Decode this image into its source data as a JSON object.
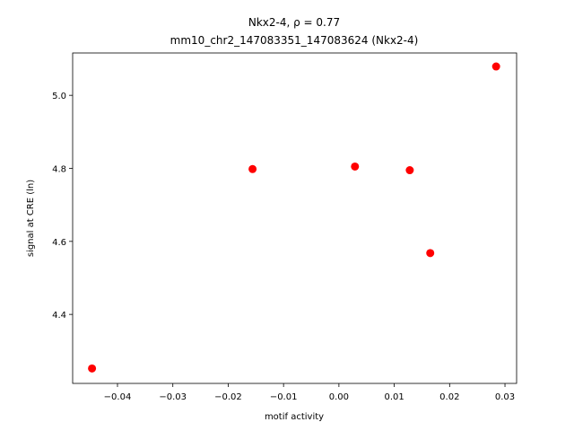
{
  "chart_data": {
    "type": "scatter",
    "title": "Nkx2-4, ρ = 0.77",
    "subtitle": "mm10_chr2_147083351_147083624 (Nkx2-4)",
    "x_label": "motif activity",
    "y_label": "signal at CRE (ln)",
    "color": "#ff0000",
    "x": [
      -0.0446,
      -0.0156,
      0.0029,
      0.0128,
      0.0165,
      0.0284
    ],
    "y": [
      4.252,
      4.798,
      4.805,
      4.795,
      4.568,
      5.079
    ],
    "xlim": [
      -0.0481,
      0.0321
    ],
    "ylim": [
      4.211,
      5.116
    ],
    "xticks": [
      {
        "value": -0.04,
        "label": "−0.04"
      },
      {
        "value": -0.03,
        "label": "−0.03"
      },
      {
        "value": -0.02,
        "label": "−0.02"
      },
      {
        "value": -0.01,
        "label": "−0.01"
      },
      {
        "value": 0,
        "label": "0.00"
      },
      0.01,
      0.02,
      0.03
    ],
    "yticks": [
      4.4,
      4.6,
      4.8,
      {
        "value": 5,
        "label": "5.0"
      }
    ]
  }
}
